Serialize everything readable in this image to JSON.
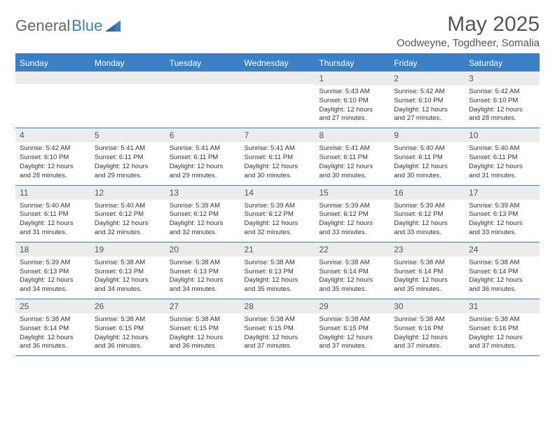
{
  "logo": {
    "text1": "General",
    "text2": "Blue"
  },
  "title": "May 2025",
  "location": "Oodweyne, Togdheer, Somalia",
  "colors": {
    "accent": "#3b7fc4",
    "headerBandBg": "#ececec",
    "text": "#333333",
    "titleText": "#555555",
    "background": "#ffffff"
  },
  "daysOfWeek": [
    "Sunday",
    "Monday",
    "Tuesday",
    "Wednesday",
    "Thursday",
    "Friday",
    "Saturday"
  ],
  "weeks": [
    [
      {
        "n": "",
        "lines": []
      },
      {
        "n": "",
        "lines": []
      },
      {
        "n": "",
        "lines": []
      },
      {
        "n": "",
        "lines": []
      },
      {
        "n": "1",
        "lines": [
          "Sunrise: 5:43 AM",
          "Sunset: 6:10 PM",
          "Daylight: 12 hours",
          "and 27 minutes."
        ]
      },
      {
        "n": "2",
        "lines": [
          "Sunrise: 5:42 AM",
          "Sunset: 6:10 PM",
          "Daylight: 12 hours",
          "and 27 minutes."
        ]
      },
      {
        "n": "3",
        "lines": [
          "Sunrise: 5:42 AM",
          "Sunset: 6:10 PM",
          "Daylight: 12 hours",
          "and 28 minutes."
        ]
      }
    ],
    [
      {
        "n": "4",
        "lines": [
          "Sunrise: 5:42 AM",
          "Sunset: 6:10 PM",
          "Daylight: 12 hours",
          "and 28 minutes."
        ]
      },
      {
        "n": "5",
        "lines": [
          "Sunrise: 5:41 AM",
          "Sunset: 6:11 PM",
          "Daylight: 12 hours",
          "and 29 minutes."
        ]
      },
      {
        "n": "6",
        "lines": [
          "Sunrise: 5:41 AM",
          "Sunset: 6:11 PM",
          "Daylight: 12 hours",
          "and 29 minutes."
        ]
      },
      {
        "n": "7",
        "lines": [
          "Sunrise: 5:41 AM",
          "Sunset: 6:11 PM",
          "Daylight: 12 hours",
          "and 30 minutes."
        ]
      },
      {
        "n": "8",
        "lines": [
          "Sunrise: 5:41 AM",
          "Sunset: 6:11 PM",
          "Daylight: 12 hours",
          "and 30 minutes."
        ]
      },
      {
        "n": "9",
        "lines": [
          "Sunrise: 5:40 AM",
          "Sunset: 6:11 PM",
          "Daylight: 12 hours",
          "and 30 minutes."
        ]
      },
      {
        "n": "10",
        "lines": [
          "Sunrise: 5:40 AM",
          "Sunset: 6:11 PM",
          "Daylight: 12 hours",
          "and 31 minutes."
        ]
      }
    ],
    [
      {
        "n": "11",
        "lines": [
          "Sunrise: 5:40 AM",
          "Sunset: 6:11 PM",
          "Daylight: 12 hours",
          "and 31 minutes."
        ]
      },
      {
        "n": "12",
        "lines": [
          "Sunrise: 5:40 AM",
          "Sunset: 6:12 PM",
          "Daylight: 12 hours",
          "and 32 minutes."
        ]
      },
      {
        "n": "13",
        "lines": [
          "Sunrise: 5:39 AM",
          "Sunset: 6:12 PM",
          "Daylight: 12 hours",
          "and 32 minutes."
        ]
      },
      {
        "n": "14",
        "lines": [
          "Sunrise: 5:39 AM",
          "Sunset: 6:12 PM",
          "Daylight: 12 hours",
          "and 32 minutes."
        ]
      },
      {
        "n": "15",
        "lines": [
          "Sunrise: 5:39 AM",
          "Sunset: 6:12 PM",
          "Daylight: 12 hours",
          "and 33 minutes."
        ]
      },
      {
        "n": "16",
        "lines": [
          "Sunrise: 5:39 AM",
          "Sunset: 6:12 PM",
          "Daylight: 12 hours",
          "and 33 minutes."
        ]
      },
      {
        "n": "17",
        "lines": [
          "Sunrise: 5:39 AM",
          "Sunset: 6:13 PM",
          "Daylight: 12 hours",
          "and 33 minutes."
        ]
      }
    ],
    [
      {
        "n": "18",
        "lines": [
          "Sunrise: 5:39 AM",
          "Sunset: 6:13 PM",
          "Daylight: 12 hours",
          "and 34 minutes."
        ]
      },
      {
        "n": "19",
        "lines": [
          "Sunrise: 5:38 AM",
          "Sunset: 6:13 PM",
          "Daylight: 12 hours",
          "and 34 minutes."
        ]
      },
      {
        "n": "20",
        "lines": [
          "Sunrise: 5:38 AM",
          "Sunset: 6:13 PM",
          "Daylight: 12 hours",
          "and 34 minutes."
        ]
      },
      {
        "n": "21",
        "lines": [
          "Sunrise: 5:38 AM",
          "Sunset: 6:13 PM",
          "Daylight: 12 hours",
          "and 35 minutes."
        ]
      },
      {
        "n": "22",
        "lines": [
          "Sunrise: 5:38 AM",
          "Sunset: 6:14 PM",
          "Daylight: 12 hours",
          "and 35 minutes."
        ]
      },
      {
        "n": "23",
        "lines": [
          "Sunrise: 5:38 AM",
          "Sunset: 6:14 PM",
          "Daylight: 12 hours",
          "and 35 minutes."
        ]
      },
      {
        "n": "24",
        "lines": [
          "Sunrise: 5:38 AM",
          "Sunset: 6:14 PM",
          "Daylight: 12 hours",
          "and 36 minutes."
        ]
      }
    ],
    [
      {
        "n": "25",
        "lines": [
          "Sunrise: 5:38 AM",
          "Sunset: 6:14 PM",
          "Daylight: 12 hours",
          "and 36 minutes."
        ]
      },
      {
        "n": "26",
        "lines": [
          "Sunrise: 5:38 AM",
          "Sunset: 6:15 PM",
          "Daylight: 12 hours",
          "and 36 minutes."
        ]
      },
      {
        "n": "27",
        "lines": [
          "Sunrise: 5:38 AM",
          "Sunset: 6:15 PM",
          "Daylight: 12 hours",
          "and 36 minutes."
        ]
      },
      {
        "n": "28",
        "lines": [
          "Sunrise: 5:38 AM",
          "Sunset: 6:15 PM",
          "Daylight: 12 hours",
          "and 37 minutes."
        ]
      },
      {
        "n": "29",
        "lines": [
          "Sunrise: 5:38 AM",
          "Sunset: 6:15 PM",
          "Daylight: 12 hours",
          "and 37 minutes."
        ]
      },
      {
        "n": "30",
        "lines": [
          "Sunrise: 5:38 AM",
          "Sunset: 6:16 PM",
          "Daylight: 12 hours",
          "and 37 minutes."
        ]
      },
      {
        "n": "31",
        "lines": [
          "Sunrise: 5:38 AM",
          "Sunset: 6:16 PM",
          "Daylight: 12 hours",
          "and 37 minutes."
        ]
      }
    ]
  ]
}
